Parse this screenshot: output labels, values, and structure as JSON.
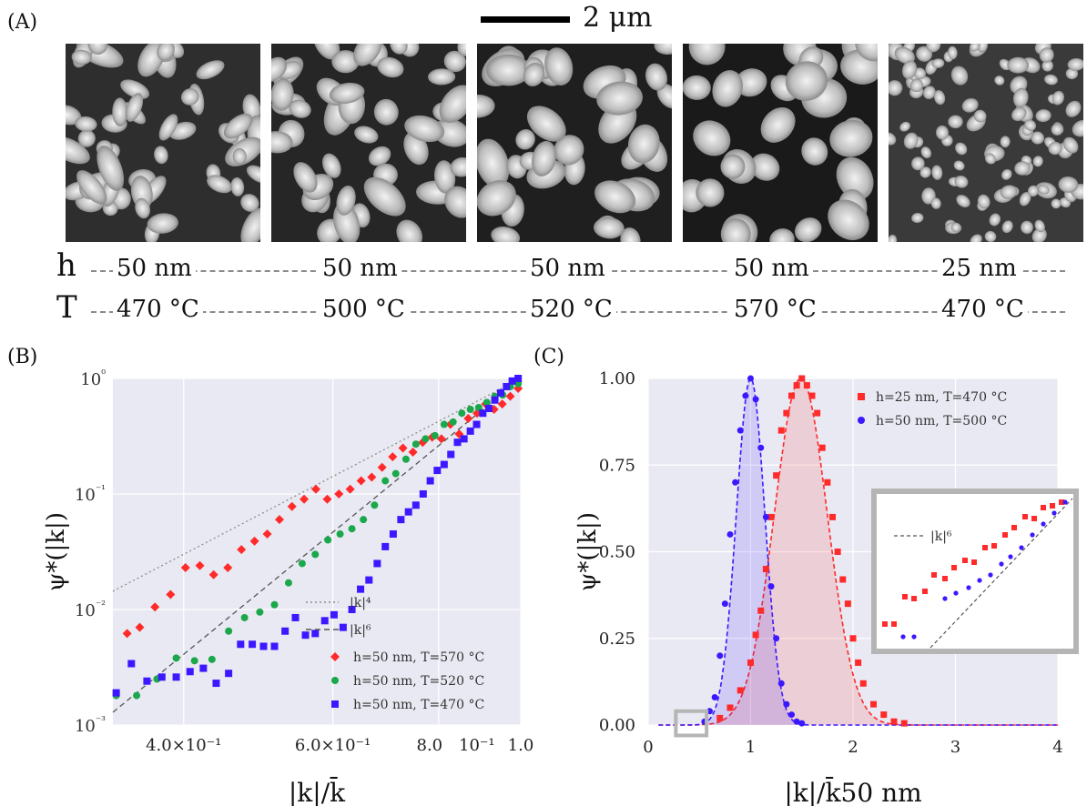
{
  "panels": {
    "a": "(A)",
    "b": "(B)",
    "c": "(C)"
  },
  "scale_bar": {
    "label": "2 μm"
  },
  "micrographs": [
    {
      "h": "50 nm",
      "T": "470 °C"
    },
    {
      "h": "50 nm",
      "T": "500 °C"
    },
    {
      "h": "50 nm",
      "T": "520 °C"
    },
    {
      "h": "50 nm",
      "T": "570 °C"
    },
    {
      "h": "25 nm",
      "T": "470 °C"
    }
  ],
  "row_labels": {
    "h": "h",
    "T": "T"
  },
  "chart_data": [
    {
      "type": "scatter",
      "panel": "B",
      "xlabel": "|k|/k̄",
      "ylabel": "ψ*(|k|)",
      "xscale": "log",
      "yscale": "log",
      "xlim": [
        0.33,
        1.0
      ],
      "ylim": [
        0.001,
        1.0
      ],
      "xtick_labels": [
        "4.0×10⁻¹",
        "6.0×10⁻¹",
        "8.0",
        "10⁻¹",
        "1.0"
      ],
      "ytick_labels": [
        "10⁰",
        "10⁻¹",
        "10⁻²",
        "10⁻³"
      ],
      "grid": true,
      "legend_position": "lower-right",
      "lines": [
        {
          "name": "|k|⁴",
          "style": "dotted",
          "color": "#8c8c8c",
          "x": [
            0.33,
            1.0
          ],
          "y": [
            0.0144,
            1.0
          ]
        },
        {
          "name": "|k|⁶",
          "style": "dashed",
          "color": "#555555",
          "x": [
            0.33,
            1.0
          ],
          "y": [
            0.00129,
            1.0
          ]
        }
      ],
      "series": [
        {
          "name": "h=50 nm, T=570 °C",
          "color": "#ff2a2a",
          "marker": "diamond",
          "x": [
            0.343,
            0.355,
            0.37,
            0.386,
            0.402,
            0.418,
            0.434,
            0.451,
            0.468,
            0.485,
            0.502,
            0.519,
            0.537,
            0.555,
            0.573,
            0.591,
            0.61,
            0.629,
            0.648,
            0.667,
            0.686,
            0.706,
            0.726,
            0.746,
            0.766,
            0.786,
            0.806,
            0.826,
            0.846,
            0.867,
            0.888,
            0.909,
            0.93,
            0.951,
            0.972,
            0.993
          ],
          "y": [
            0.0062,
            0.007,
            0.0105,
            0.0135,
            0.023,
            0.024,
            0.02,
            0.023,
            0.033,
            0.039,
            0.045,
            0.06,
            0.078,
            0.09,
            0.11,
            0.09,
            0.1,
            0.11,
            0.13,
            0.14,
            0.17,
            0.21,
            0.25,
            0.23,
            0.28,
            0.31,
            0.3,
            0.4,
            0.33,
            0.45,
            0.5,
            0.6,
            0.54,
            0.6,
            0.7,
            0.82
          ]
        },
        {
          "name": "h=50 nm, T=520 °C",
          "color": "#1aa84a",
          "marker": "circle",
          "x": [
            0.333,
            0.352,
            0.372,
            0.392,
            0.412,
            0.432,
            0.452,
            0.472,
            0.492,
            0.512,
            0.532,
            0.552,
            0.572,
            0.592,
            0.612,
            0.632,
            0.652,
            0.672,
            0.692,
            0.712,
            0.732,
            0.752,
            0.772,
            0.792,
            0.812,
            0.832,
            0.852,
            0.872,
            0.892,
            0.912,
            0.932,
            0.952,
            0.972,
            0.993
          ],
          "y": [
            0.0018,
            0.0018,
            0.0025,
            0.0038,
            0.0036,
            0.0037,
            0.0065,
            0.0085,
            0.0095,
            0.011,
            0.017,
            0.025,
            0.03,
            0.04,
            0.045,
            0.05,
            0.06,
            0.08,
            0.13,
            0.15,
            0.2,
            0.27,
            0.3,
            0.32,
            0.4,
            0.42,
            0.5,
            0.54,
            0.56,
            0.62,
            0.7,
            0.72,
            0.85,
            0.9
          ]
        },
        {
          "name": "h=50 nm, T=470 °C",
          "color": "#3b18ff",
          "marker": "square",
          "x": [
            0.333,
            0.347,
            0.362,
            0.377,
            0.392,
            0.407,
            0.422,
            0.437,
            0.452,
            0.467,
            0.482,
            0.497,
            0.512,
            0.527,
            0.542,
            0.557,
            0.572,
            0.587,
            0.602,
            0.617,
            0.632,
            0.647,
            0.662,
            0.677,
            0.692,
            0.707,
            0.722,
            0.737,
            0.752,
            0.767,
            0.782,
            0.797,
            0.812,
            0.827,
            0.842,
            0.857,
            0.872,
            0.887,
            0.902,
            0.917,
            0.932,
            0.947,
            0.962,
            0.977,
            0.993
          ],
          "y": [
            0.0019,
            0.0034,
            0.0024,
            0.0026,
            0.0026,
            0.0029,
            0.0031,
            0.0023,
            0.0028,
            0.005,
            0.005,
            0.0048,
            0.0048,
            0.0065,
            0.0085,
            0.006,
            0.0062,
            0.008,
            0.009,
            0.007,
            0.01,
            0.015,
            0.018,
            0.025,
            0.035,
            0.045,
            0.06,
            0.07,
            0.08,
            0.1,
            0.13,
            0.16,
            0.18,
            0.22,
            0.28,
            0.3,
            0.35,
            0.4,
            0.5,
            0.55,
            0.65,
            0.75,
            0.85,
            0.95,
            1.0
          ]
        }
      ]
    },
    {
      "type": "scatter",
      "panel": "C",
      "xlabel": "|k|/k̄50 nm",
      "ylabel": "ψ*(|k|)",
      "xlim": [
        0,
        4
      ],
      "ylim": [
        0,
        1.0
      ],
      "xticks": [
        0,
        1,
        2,
        3,
        4
      ],
      "yticks": [
        0.0,
        0.25,
        0.5,
        0.75,
        1.0
      ],
      "grid": true,
      "legend_position": "top-right",
      "series": [
        {
          "name": "h=25 nm, T=470 °C",
          "color": "#ff2a2a",
          "marker": "square",
          "peak_x": 1.49,
          "sigma": 0.26,
          "peak_y": 1.0,
          "x": [
            0.7,
            0.8,
            0.9,
            1.0,
            1.05,
            1.1,
            1.15,
            1.2,
            1.25,
            1.3,
            1.35,
            1.4,
            1.45,
            1.5,
            1.55,
            1.6,
            1.65,
            1.7,
            1.75,
            1.8,
            1.85,
            1.9,
            1.95,
            2.0,
            2.05,
            2.1,
            2.2,
            2.3,
            2.4,
            2.5
          ],
          "y": [
            0.02,
            0.05,
            0.1,
            0.18,
            0.26,
            0.33,
            0.45,
            0.6,
            0.72,
            0.85,
            0.9,
            0.95,
            0.98,
            1.0,
            0.98,
            0.95,
            0.9,
            0.8,
            0.7,
            0.6,
            0.5,
            0.42,
            0.35,
            0.25,
            0.18,
            0.12,
            0.06,
            0.03,
            0.01,
            0.005
          ]
        },
        {
          "name": "h=50 nm, T=500 °C",
          "color": "#3b18ff",
          "marker": "circle",
          "peak_x": 1.0,
          "sigma": 0.14,
          "peak_y": 1.0,
          "x": [
            0.55,
            0.6,
            0.65,
            0.7,
            0.75,
            0.8,
            0.85,
            0.9,
            0.95,
            1.0,
            1.05,
            1.1,
            1.15,
            1.2,
            1.25,
            1.3,
            1.35,
            1.4,
            1.45,
            1.5
          ],
          "y": [
            0.01,
            0.04,
            0.08,
            0.2,
            0.35,
            0.55,
            0.7,
            0.85,
            0.95,
            1.0,
            0.94,
            0.8,
            0.6,
            0.4,
            0.25,
            0.12,
            0.06,
            0.03,
            0.01,
            0.005
          ]
        }
      ],
      "inset": {
        "legend": "|k|⁶"
      }
    }
  ]
}
